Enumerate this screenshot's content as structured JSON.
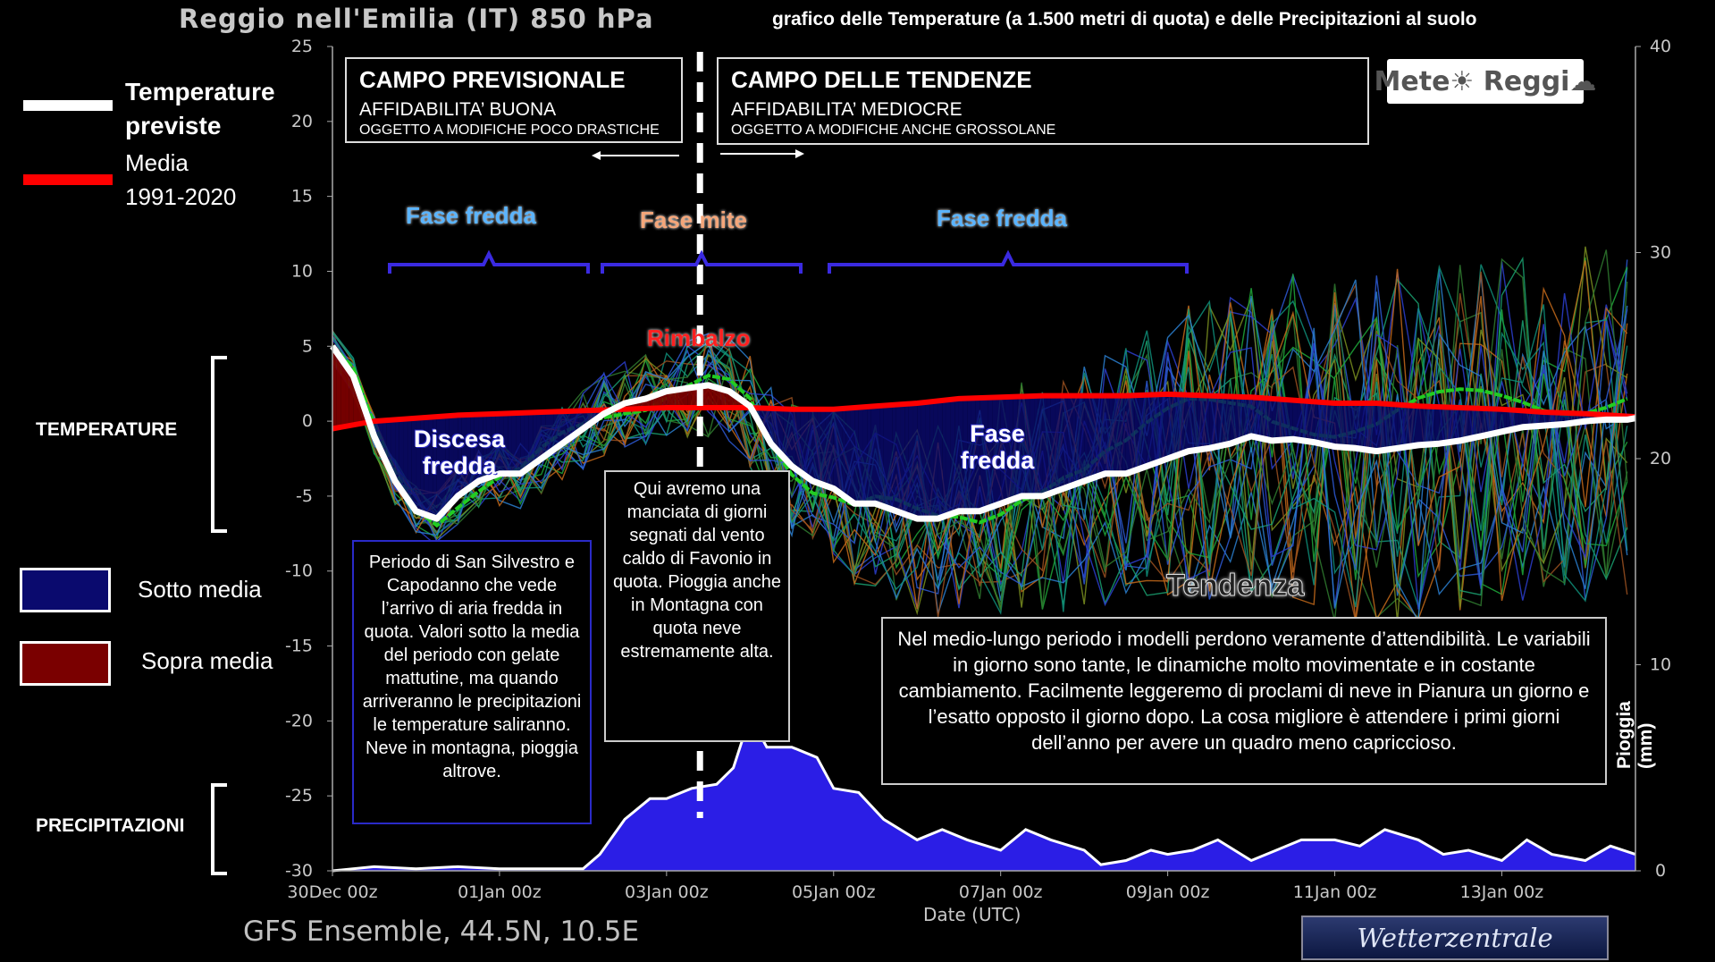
{
  "header": {
    "title": "Reggio nell'Emilia  (IT)  850 hPa",
    "subtitle": "grafico delle Temperature  (a 1.500 metri di quota) e delle Precipitazioni al suolo"
  },
  "footer": {
    "model": "GFS Ensemble, 44.5N, 10.5E",
    "xlabel": "Date (UTC)",
    "source_logo": "Wetterzentrale"
  },
  "logo": {
    "text": "Mete☀ Reggi☁"
  },
  "legend": {
    "temp_label": "Temperature previste",
    "temp_line1": "Temperature",
    "temp_line2": "previste",
    "mean_line1": "Media",
    "mean_line2": "1991-2020",
    "below_label": "Sotto media",
    "above_label": "Sopra media",
    "colors": {
      "forecast": "#ffffff",
      "mean": "#ff0000",
      "below": "#0a0a6e",
      "above": "#7a0000",
      "precip": "#2b1ee6"
    }
  },
  "side_labels": {
    "temperature": "TEMPERATURE",
    "precipitation": "PRECIPITAZIONI",
    "right_axis": "Pioggia (mm)"
  },
  "fields": {
    "forecast": {
      "title": "CAMPO PREVISIONALE",
      "reliability": "AFFIDABILITA’ BUONA",
      "note": "OGGETTO A MODIFICHE POCO DRASTICHE"
    },
    "trend": {
      "title": "CAMPO DELLE TENDENZE",
      "reliability": "AFFIDABILITA’ MEDIOCRE",
      "note": "OGGETTO A MODIFICHE ANCHE GROSSOLANE"
    }
  },
  "phases": {
    "fase1": "Fase fredda",
    "fase2": "Fase mite",
    "fase3": "Fase fredda",
    "rimbalzo": "Rimbalzo",
    "discesa1": "Discesa",
    "discesa2": "fredda",
    "fase_fredda1": "Fase",
    "fase_fredda2": "fredda",
    "tendenza": "Tendenza"
  },
  "notes": {
    "left": "Periodo di San Silvestro e Capodanno che vede l’arrivo di aria fredda in quota. Valori sotto la media del periodo con gelate mattutine, ma quando arriveranno le precipitazioni le temperature saliranno. Neve in montagna, pioggia altrove.",
    "middle": "Qui avremo una manciata di giorni segnati dal vento caldo di Favonio in quota. Pioggia anche in Montagna con quota neve estremamente alta.",
    "right": "Nel medio-lungo periodo i modelli perdono veramente d’attendibilità. Le variabili in giorno sono tante, le dinamiche molto movimentate e in costante cambiamento. Facilmente leggeremo di proclami di neve in Pianura un giorno e l’esatto opposto il giorno dopo. La cosa migliore è attendere i primi giorni dell’anno per avere un quadro meno capriccioso."
  },
  "chart_data": {
    "type": "line",
    "title": "Reggio nell'Emilia  (IT)  850 hPa",
    "xlabel": "Date (UTC)",
    "ylabel_right": "Pioggia (mm)",
    "x_tick_labels": [
      "30Dec 00z",
      "01Jan 00z",
      "03Jan 00z",
      "05Jan 00z",
      "07Jan 00z",
      "09Jan 00z",
      "11Jan 00z",
      "13Jan 00z"
    ],
    "x_range_days": [
      0,
      15.6
    ],
    "y_left_ticks": [
      25,
      20,
      15,
      10,
      5,
      0,
      -5,
      -10,
      -15,
      -20,
      -25,
      -30
    ],
    "y_left_range": [
      -30,
      25
    ],
    "y_right_ticks": [
      40,
      30,
      20,
      10,
      0
    ],
    "y_right_range": [
      0,
      40
    ],
    "forecast_divider_day": 4.4,
    "series": [
      {
        "name": "Temperature previste",
        "x": [
          0,
          0.25,
          0.5,
          0.75,
          1,
          1.25,
          1.5,
          1.75,
          2,
          2.25,
          2.5,
          2.75,
          3,
          3.25,
          3.5,
          3.75,
          4,
          4.25,
          4.5,
          4.75,
          5,
          5.25,
          5.5,
          5.75,
          6,
          6.25,
          6.5,
          6.75,
          7,
          7.25,
          7.5,
          7.75,
          8,
          8.25,
          8.5,
          8.75,
          9,
          9.25,
          9.5,
          9.75,
          10,
          10.25,
          10.5,
          10.75,
          11,
          11.25,
          11.5,
          11.75,
          12,
          12.25,
          12.5,
          12.75,
          13,
          13.25,
          13.5,
          13.75,
          14,
          14.25,
          14.5,
          14.75,
          15,
          15.25,
          15.5,
          15.6
        ],
        "values": [
          5,
          3,
          -1,
          -4,
          -6,
          -6.5,
          -5,
          -4,
          -3.5,
          -3.5,
          -2.5,
          -1.5,
          -0.5,
          0.5,
          1.2,
          1.5,
          2,
          2.2,
          2.4,
          2,
          1,
          -1.5,
          -3,
          -4,
          -4.5,
          -5.5,
          -5.5,
          -6,
          -6.5,
          -6.5,
          -6,
          -6,
          -5.5,
          -5,
          -5,
          -4.5,
          -4,
          -3.5,
          -3.5,
          -3,
          -2.5,
          -2,
          -1.8,
          -1.5,
          -1,
          -1.3,
          -1.2,
          -1.4,
          -1.7,
          -1.8,
          -2,
          -1.8,
          -1.6,
          -1.5,
          -1.3,
          -1,
          -0.7,
          -0.4,
          -0.3,
          -0.2,
          0,
          0.1,
          0.1,
          0.2
        ]
      },
      {
        "name": "Media 1991-2020",
        "x": [
          0,
          0.5,
          1,
          1.5,
          2,
          2.5,
          3,
          3.5,
          4,
          4.5,
          5,
          5.5,
          6,
          6.5,
          7,
          7.5,
          8,
          8.5,
          9,
          9.5,
          10,
          10.5,
          11,
          11.5,
          12,
          12.5,
          13,
          13.5,
          14,
          14.5,
          15,
          15.6
        ],
        "values": [
          -0.5,
          0,
          0.2,
          0.4,
          0.5,
          0.6,
          0.7,
          0.8,
          0.9,
          0.9,
          0.9,
          0.8,
          0.8,
          1,
          1.2,
          1.5,
          1.6,
          1.7,
          1.7,
          1.7,
          1.8,
          1.7,
          1.6,
          1.4,
          1.2,
          1.2,
          1,
          0.9,
          0.8,
          0.6,
          0.5,
          0.3
        ]
      },
      {
        "name": "Pioggia (mm)",
        "x": [
          0,
          0.5,
          1,
          1.5,
          2,
          2.5,
          3,
          3.2,
          3.5,
          3.8,
          4,
          4.3,
          4.6,
          4.8,
          5,
          5.2,
          5.5,
          5.8,
          6,
          6.3,
          6.6,
          7,
          7.3,
          7.6,
          8,
          8.3,
          8.6,
          9,
          9.2,
          9.5,
          9.8,
          10,
          10.3,
          10.6,
          11,
          11.3,
          11.6,
          12,
          12.3,
          12.6,
          13,
          13.3,
          13.6,
          14,
          14.3,
          14.6,
          15,
          15.3,
          15.6
        ],
        "values": [
          0,
          0.2,
          0.1,
          0.2,
          0.1,
          0.1,
          0.1,
          0.8,
          2.5,
          3.5,
          3.5,
          4,
          4.2,
          5,
          7.5,
          6,
          6,
          5.5,
          4,
          3.8,
          2.5,
          1.5,
          2,
          1.5,
          1,
          2,
          1.5,
          1,
          0.3,
          0.5,
          1,
          0.8,
          1,
          1.5,
          0.5,
          1,
          1.5,
          1.5,
          1.2,
          2,
          1.5,
          0.8,
          1,
          0.5,
          1.5,
          0.8,
          0.5,
          1.2,
          0.8
        ]
      }
    ]
  }
}
